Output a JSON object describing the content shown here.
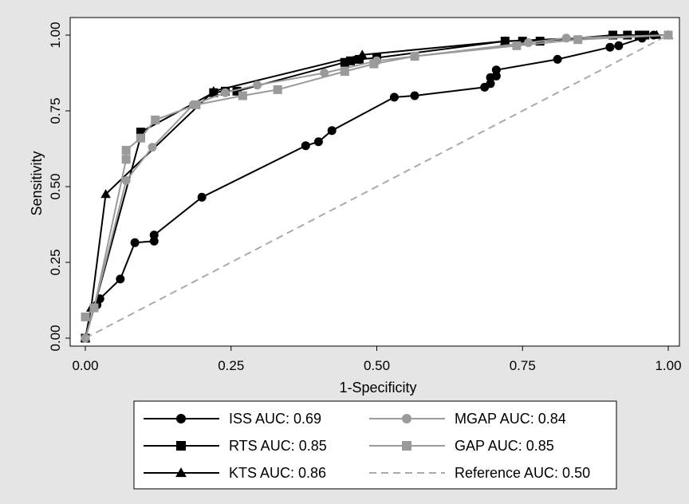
{
  "chart_data": {
    "type": "line",
    "title": "",
    "xlabel": "1-Specificity",
    "ylabel": "Sensitivity",
    "xlim": [
      0,
      1
    ],
    "ylim": [
      0,
      1
    ],
    "xticks": [
      "0.00",
      "0.25",
      "0.50",
      "0.75",
      "1.00"
    ],
    "yticks": [
      "0.00",
      "0.25",
      "0.50",
      "0.75",
      "1.00"
    ],
    "grid": false,
    "legend_position": "bottom",
    "series": [
      {
        "name": "ISS AUC: 0.69",
        "color": "#000000",
        "marker": "circle",
        "dashed": false,
        "points": [
          [
            0,
            0
          ],
          [
            0.015,
            0.1
          ],
          [
            0.02,
            0.11
          ],
          [
            0.025,
            0.13
          ],
          [
            0.06,
            0.195
          ],
          [
            0.085,
            0.315
          ],
          [
            0.118,
            0.32
          ],
          [
            0.118,
            0.34
          ],
          [
            0.2,
            0.465
          ],
          [
            0.378,
            0.635
          ],
          [
            0.4,
            0.648
          ],
          [
            0.423,
            0.685
          ],
          [
            0.53,
            0.795
          ],
          [
            0.565,
            0.8
          ],
          [
            0.685,
            0.828
          ],
          [
            0.695,
            0.84
          ],
          [
            0.695,
            0.86
          ],
          [
            0.705,
            0.865
          ],
          [
            0.705,
            0.885
          ],
          [
            0.81,
            0.92
          ],
          [
            0.9,
            0.96
          ],
          [
            0.915,
            0.965
          ],
          [
            0.955,
            0.99
          ],
          [
            0.975,
            1.0
          ],
          [
            1.0,
            1.0
          ]
        ]
      },
      {
        "name": "RTS AUC: 0.85",
        "color": "#000000",
        "marker": "square",
        "dashed": false,
        "points": [
          [
            0,
            0
          ],
          [
            0.015,
            0.1
          ],
          [
            0.095,
            0.665
          ],
          [
            0.095,
            0.68
          ],
          [
            0.22,
            0.81
          ],
          [
            0.24,
            0.815
          ],
          [
            0.26,
            0.815
          ],
          [
            0.445,
            0.91
          ],
          [
            0.455,
            0.915
          ],
          [
            0.47,
            0.92
          ],
          [
            0.5,
            0.925
          ],
          [
            0.72,
            0.98
          ],
          [
            0.75,
            0.98
          ],
          [
            0.78,
            0.98
          ],
          [
            0.905,
            1.0
          ],
          [
            0.93,
            1.0
          ],
          [
            0.95,
            1.0
          ],
          [
            0.96,
            1.0
          ],
          [
            1.0,
            1.0
          ]
        ]
      },
      {
        "name": "KTS AUC: 0.86",
        "color": "#000000",
        "marker": "triangle",
        "dashed": false,
        "points": [
          [
            0,
            0
          ],
          [
            0.01,
            0.1
          ],
          [
            0.035,
            0.475
          ],
          [
            0.22,
            0.815
          ],
          [
            0.475,
            0.935
          ],
          [
            0.72,
            0.98
          ],
          [
            0.98,
            1.0
          ],
          [
            1.0,
            1.0
          ]
        ]
      },
      {
        "name": "MGAP AUC: 0.84",
        "color": "#9a9a9a",
        "marker": "circle",
        "dashed": false,
        "points": [
          [
            0,
            0
          ],
          [
            0.015,
            0.1
          ],
          [
            0.07,
            0.52
          ],
          [
            0.115,
            0.63
          ],
          [
            0.185,
            0.77
          ],
          [
            0.24,
            0.81
          ],
          [
            0.295,
            0.835
          ],
          [
            0.41,
            0.875
          ],
          [
            0.5,
            0.915
          ],
          [
            0.76,
            0.975
          ],
          [
            0.825,
            0.99
          ],
          [
            1.0,
            1.0
          ]
        ]
      },
      {
        "name": "GAP AUC: 0.85",
        "color": "#9a9a9a",
        "marker": "square",
        "dashed": false,
        "points": [
          [
            0,
            0.07
          ],
          [
            0.015,
            0.1
          ],
          [
            0.07,
            0.59
          ],
          [
            0.07,
            0.62
          ],
          [
            0.095,
            0.66
          ],
          [
            0.12,
            0.72
          ],
          [
            0.19,
            0.77
          ],
          [
            0.27,
            0.8
          ],
          [
            0.33,
            0.82
          ],
          [
            0.445,
            0.88
          ],
          [
            0.495,
            0.905
          ],
          [
            0.565,
            0.93
          ],
          [
            0.74,
            0.965
          ],
          [
            0.845,
            0.985
          ],
          [
            1.0,
            1.0
          ]
        ]
      },
      {
        "name": "Reference AUC: 0.50",
        "color": "#aaaaaa",
        "marker": "none",
        "dashed": true,
        "points": [
          [
            0,
            0
          ],
          [
            1,
            1
          ]
        ]
      }
    ]
  }
}
